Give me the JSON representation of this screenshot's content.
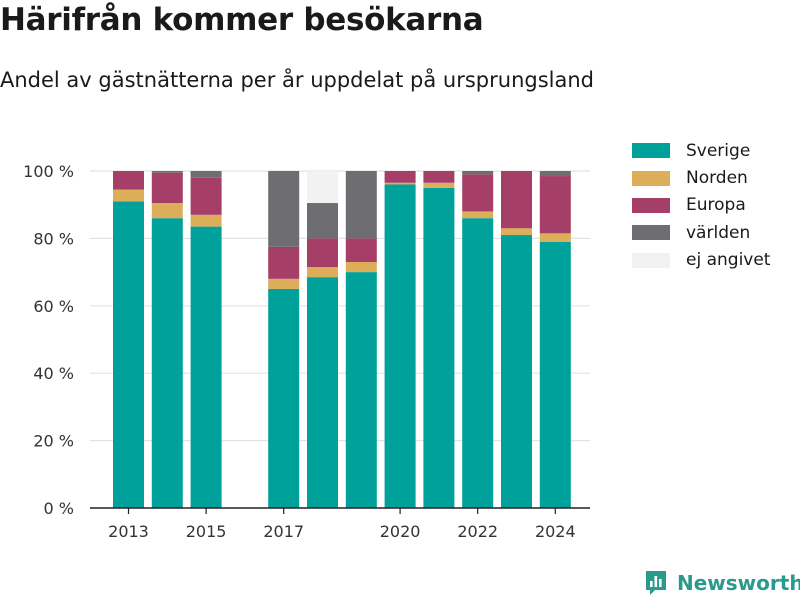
{
  "title": "Härifrån kommer besökarna",
  "subtitle": "Andel av gästnätterna per år uppdelat på ursprungsland",
  "brand": {
    "name": "Newsworthy",
    "icon": "newsworthy-logo-icon",
    "color": "#2a9a8c"
  },
  "chart_data": {
    "type": "bar",
    "stacked": true,
    "title": "Härifrån kommer besökarna",
    "subtitle": "Andel av gästnätterna per år uppdelat på ursprungsland",
    "categories": [
      "2013",
      "2014",
      "2015",
      "2016",
      "2017",
      "2018",
      "2019",
      "2020",
      "2021",
      "2022",
      "2023",
      "2024"
    ],
    "x_tick_labels": [
      "2013",
      "2015",
      "2017",
      "2020",
      "2022",
      "2024"
    ],
    "y_ticks": [
      0,
      20,
      40,
      60,
      80,
      100
    ],
    "y_tick_labels": [
      "0 %",
      "20 %",
      "40 %",
      "60 %",
      "80 %",
      "100 %"
    ],
    "ylim": [
      0,
      100
    ],
    "unit": "%",
    "grid": true,
    "legend_position": "right",
    "series": [
      {
        "name": "Sverige",
        "color": "#00a19a",
        "values": [
          91,
          86,
          83.5,
          null,
          65,
          68.5,
          70,
          96,
          95,
          86,
          81,
          79
        ]
      },
      {
        "name": "Norden",
        "color": "#dcae5a",
        "values": [
          3.5,
          4.5,
          3.5,
          null,
          3,
          3,
          3,
          0.5,
          1.5,
          2,
          2,
          2.5
        ]
      },
      {
        "name": "Europa",
        "color": "#a53f67",
        "values": [
          5.5,
          9,
          11,
          null,
          9.5,
          8.5,
          7,
          3.5,
          3.5,
          11,
          17,
          17
        ]
      },
      {
        "name": "världen",
        "color": "#6e6d72",
        "values": [
          0,
          0.5,
          2,
          null,
          22.5,
          10.5,
          20,
          0,
          0,
          1,
          0,
          1.5
        ]
      },
      {
        "name": "ej angivet",
        "color": "#f2f2f2",
        "values": [
          0,
          0,
          0,
          null,
          0,
          9.5,
          0,
          0,
          0,
          0,
          0,
          0
        ]
      }
    ]
  }
}
